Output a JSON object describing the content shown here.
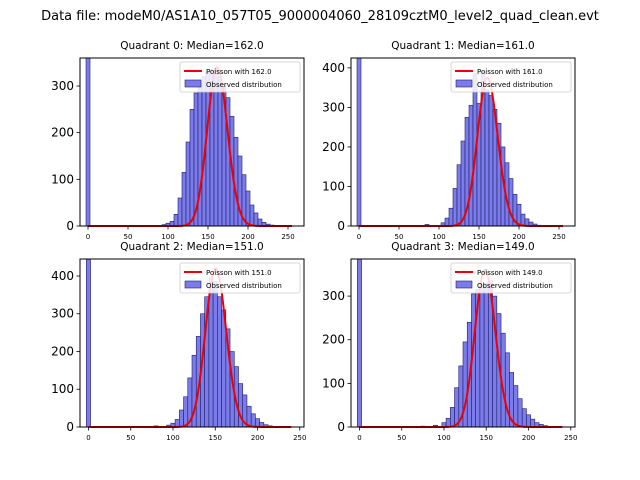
{
  "figure_title": "Data file: modeM0/AS1A10_057T05_9000004060_28109cztM0_level2_quad_clean.evt",
  "colors": {
    "bar_fill": "#7b7bea",
    "bar_edge": "#1f1f6a",
    "curve": "#ee0000",
    "axes": "#000000"
  },
  "chart_data": [
    {
      "type": "bar",
      "title": "Quadrant 0: Median=162.0",
      "legend": {
        "placement": "top-right",
        "entries": [
          "Poisson with 162.0",
          "Observed distribution"
        ]
      },
      "xlim": [
        -10,
        270
      ],
      "ylim": [
        0,
        360
      ],
      "xticks": [
        0,
        50,
        100,
        150,
        200,
        250
      ],
      "yticks": [
        0,
        100,
        200,
        300
      ],
      "bin_width": 5,
      "bars": [
        [
          0,
          360
        ],
        [
          95,
          3
        ],
        [
          100,
          6
        ],
        [
          105,
          10
        ],
        [
          110,
          25
        ],
        [
          115,
          60
        ],
        [
          120,
          115
        ],
        [
          125,
          180
        ],
        [
          130,
          250
        ],
        [
          135,
          285
        ],
        [
          140,
          305
        ],
        [
          145,
          320
        ],
        [
          150,
          330
        ],
        [
          155,
          335
        ],
        [
          160,
          335
        ],
        [
          165,
          320
        ],
        [
          170,
          300
        ],
        [
          175,
          275
        ],
        [
          180,
          235
        ],
        [
          185,
          190
        ],
        [
          190,
          150
        ],
        [
          195,
          110
        ],
        [
          200,
          75
        ],
        [
          205,
          45
        ],
        [
          210,
          28
        ],
        [
          215,
          15
        ],
        [
          220,
          8
        ],
        [
          225,
          4
        ],
        [
          230,
          2
        ]
      ],
      "curve": {
        "mean": 162.0,
        "peak": 340,
        "x_range": [
          0,
          255
        ]
      }
    },
    {
      "type": "bar",
      "title": "Quadrant 1: Median=161.0",
      "legend": {
        "placement": "top-right",
        "entries": [
          "Poisson with 161.0",
          "Observed distribution"
        ]
      },
      "xlim": [
        -10,
        270
      ],
      "ylim": [
        0,
        425
      ],
      "xticks": [
        0,
        50,
        100,
        150,
        200,
        250
      ],
      "yticks": [
        0,
        100,
        200,
        300,
        400
      ],
      "bin_width": 5,
      "bars": [
        [
          0,
          425
        ],
        [
          85,
          4
        ],
        [
          105,
          8
        ],
        [
          110,
          20
        ],
        [
          115,
          45
        ],
        [
          120,
          95
        ],
        [
          125,
          155
        ],
        [
          130,
          215
        ],
        [
          135,
          275
        ],
        [
          140,
          305
        ],
        [
          145,
          385
        ],
        [
          150,
          310
        ],
        [
          155,
          390
        ],
        [
          160,
          345
        ],
        [
          165,
          330
        ],
        [
          170,
          295
        ],
        [
          175,
          260
        ],
        [
          180,
          200
        ],
        [
          185,
          160
        ],
        [
          190,
          120
        ],
        [
          195,
          80
        ],
        [
          200,
          55
        ],
        [
          205,
          30
        ],
        [
          210,
          18
        ],
        [
          215,
          10
        ],
        [
          220,
          5
        ],
        [
          225,
          2
        ]
      ],
      "curve": {
        "mean": 161.0,
        "peak": 375,
        "x_range": [
          0,
          255
        ]
      }
    },
    {
      "type": "bar",
      "title": "Quadrant 2: Median=151.0",
      "legend": {
        "placement": "top-right",
        "entries": [
          "Poisson with 151.0",
          "Observed distribution"
        ]
      },
      "xlim": [
        -10,
        255
      ],
      "ylim": [
        0,
        445
      ],
      "xticks": [
        0,
        50,
        100,
        150,
        200,
        250
      ],
      "yticks": [
        0,
        100,
        200,
        300,
        400
      ],
      "bin_width": 5,
      "bars": [
        [
          0,
          445
        ],
        [
          80,
          3
        ],
        [
          95,
          5
        ],
        [
          100,
          10
        ],
        [
          105,
          20
        ],
        [
          110,
          45
        ],
        [
          115,
          80
        ],
        [
          120,
          130
        ],
        [
          125,
          190
        ],
        [
          130,
          240
        ],
        [
          135,
          300
        ],
        [
          140,
          345
        ],
        [
          145,
          395
        ],
        [
          150,
          385
        ],
        [
          155,
          345
        ],
        [
          160,
          310
        ],
        [
          165,
          260
        ],
        [
          170,
          200
        ],
        [
          175,
          160
        ],
        [
          180,
          115
        ],
        [
          185,
          85
        ],
        [
          190,
          55
        ],
        [
          195,
          35
        ],
        [
          200,
          22
        ],
        [
          205,
          12
        ],
        [
          210,
          6
        ],
        [
          215,
          3
        ]
      ],
      "curve": {
        "mean": 151.0,
        "peak": 420,
        "x_range": [
          0,
          240
        ]
      }
    },
    {
      "type": "bar",
      "title": "Quadrant 3: Median=149.0",
      "legend": {
        "placement": "top-right",
        "entries": [
          "Poisson with 149.0",
          "Observed distribution"
        ]
      },
      "xlim": [
        -10,
        255
      ],
      "ylim": [
        0,
        385
      ],
      "xticks": [
        0,
        50,
        100,
        150,
        200,
        250
      ],
      "yticks": [
        0,
        100,
        200,
        300
      ],
      "bin_width": 5,
      "bars": [
        [
          0,
          385
        ],
        [
          75,
          2
        ],
        [
          90,
          4
        ],
        [
          100,
          10
        ],
        [
          105,
          20
        ],
        [
          110,
          45
        ],
        [
          115,
          90
        ],
        [
          120,
          140
        ],
        [
          125,
          195
        ],
        [
          130,
          240
        ],
        [
          135,
          305
        ],
        [
          140,
          315
        ],
        [
          145,
          325
        ],
        [
          150,
          330
        ],
        [
          155,
          335
        ],
        [
          160,
          300
        ],
        [
          165,
          260
        ],
        [
          170,
          215
        ],
        [
          175,
          170
        ],
        [
          180,
          125
        ],
        [
          185,
          95
        ],
        [
          190,
          65
        ],
        [
          195,
          42
        ],
        [
          200,
          28
        ],
        [
          205,
          18
        ],
        [
          210,
          10
        ],
        [
          215,
          6
        ],
        [
          220,
          3
        ]
      ],
      "curve": {
        "mean": 149.0,
        "peak": 360,
        "x_range": [
          0,
          240
        ]
      }
    }
  ]
}
